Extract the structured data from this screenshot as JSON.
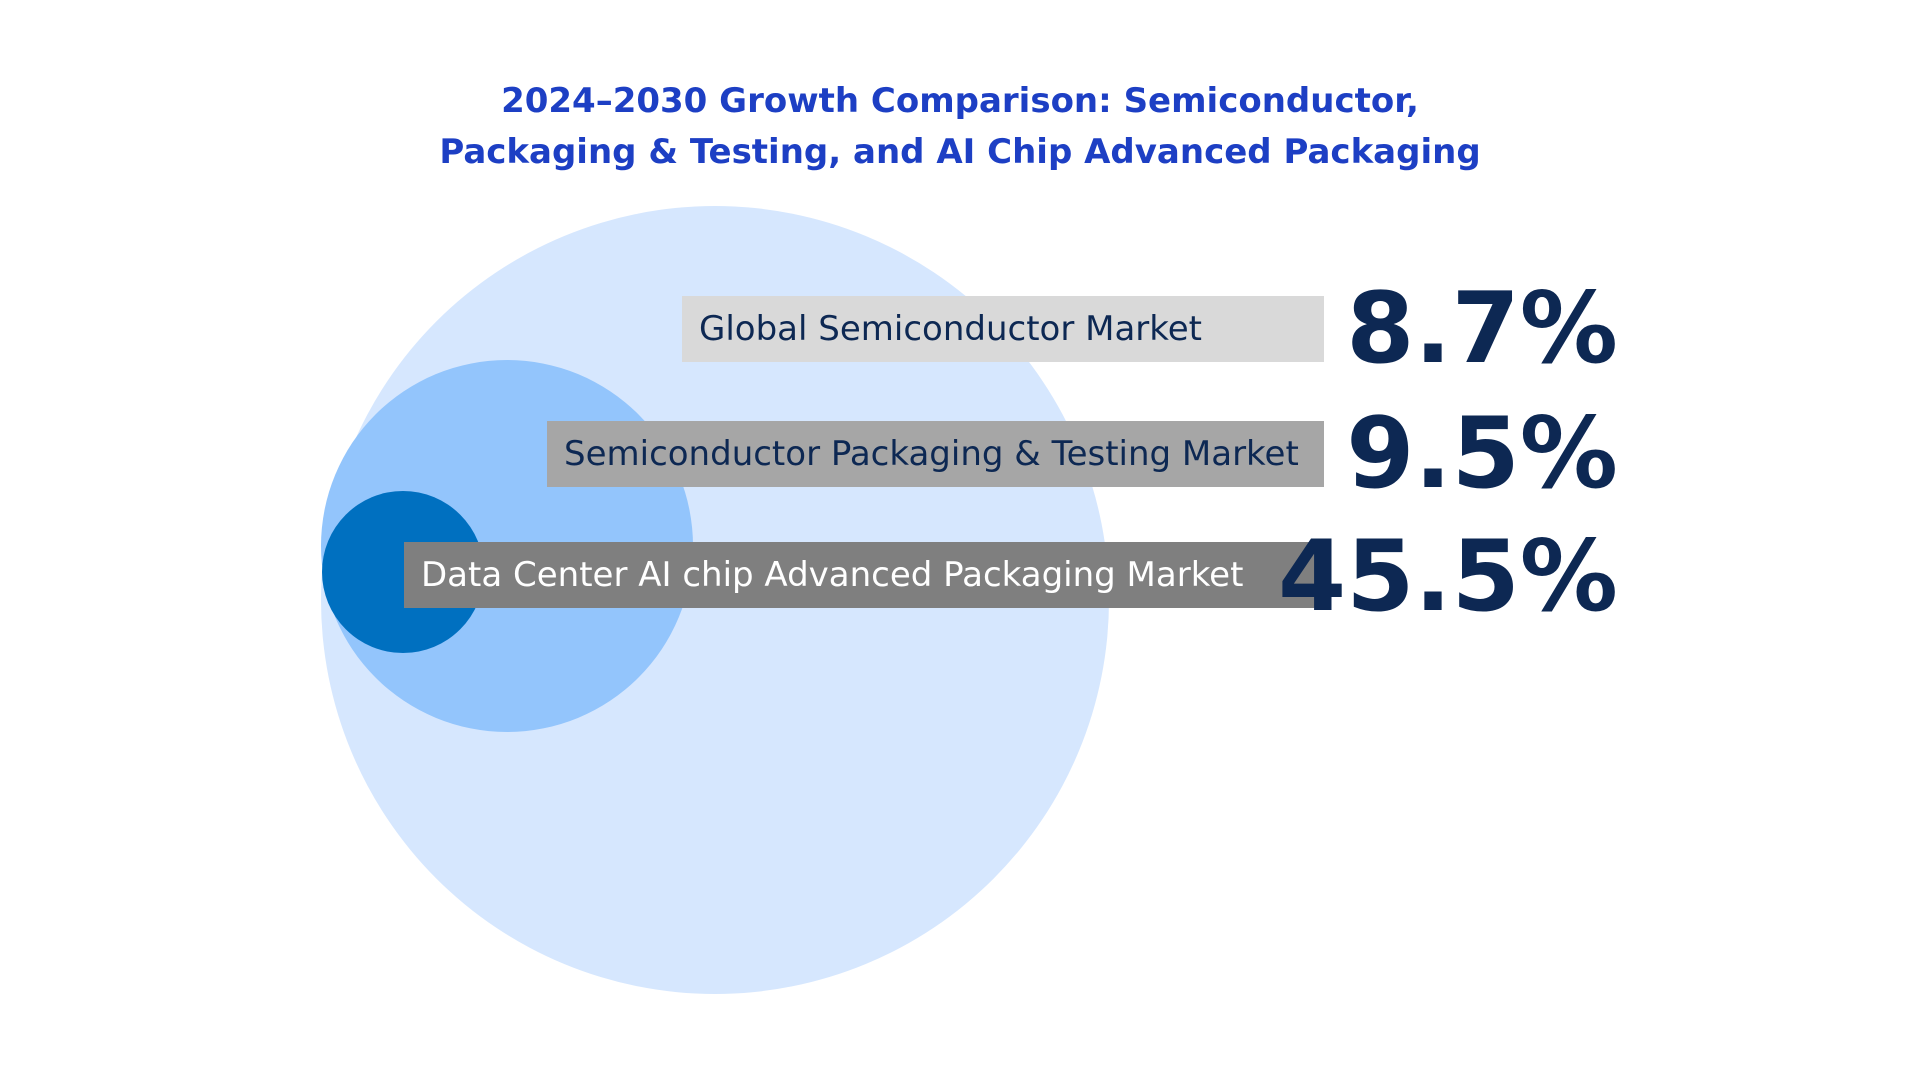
{
  "title": {
    "line1": "2024–2030 Growth Comparison: Semiconductor,",
    "line2": "Packaging & Testing, and AI Chip Advanced Packaging"
  },
  "colors": {
    "title": "#1d3fc4",
    "outer_circle": "#d6e7fe",
    "middle_circle": "#93c5fc",
    "inner_circle": "#0070c0",
    "bar1": "#d9d9d9",
    "bar2": "#a6a6a6",
    "bar3": "#7f7f7f",
    "value_text": "#0d2853"
  },
  "items": [
    {
      "label": "Global Semiconductor Market",
      "value": "8.7%"
    },
    {
      "label": "Semiconductor Packaging & Testing Market",
      "value": "9.5%"
    },
    {
      "label": "Data Center AI chip Advanced Packaging Market",
      "value": "45.5%"
    }
  ]
}
